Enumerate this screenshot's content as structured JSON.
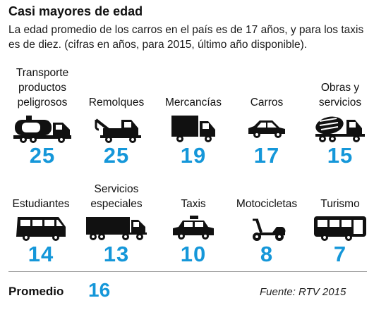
{
  "header": {
    "title": "Casi mayores de edad",
    "subtitle": "La edad promedio de los carros en el país es de 17 años, y para los taxis es de diez. (cifras en años, para 2015, último año disponible)."
  },
  "vehicles": [
    {
      "label": "Transporte productos peligrosos",
      "value": "25",
      "icon": "tanker-truck-icon"
    },
    {
      "label": "Remolques",
      "value": "25",
      "icon": "tow-truck-icon"
    },
    {
      "label": "Mercancías",
      "value": "19",
      "icon": "cargo-truck-icon"
    },
    {
      "label": "Carros",
      "value": "17",
      "icon": "car-icon"
    },
    {
      "label": "Obras y servicios",
      "value": "15",
      "icon": "cement-mixer-icon"
    },
    {
      "label": "Estudiantes",
      "value": "14",
      "icon": "van-icon"
    },
    {
      "label": "Servicios especiales",
      "value": "13",
      "icon": "trailer-truck-icon"
    },
    {
      "label": "Taxis",
      "value": "10",
      "icon": "taxi-icon"
    },
    {
      "label": "Motocicletas",
      "value": "8",
      "icon": "scooter-icon"
    },
    {
      "label": "Turismo",
      "value": "7",
      "icon": "bus-icon"
    }
  ],
  "footer": {
    "average_label": "Promedio",
    "average_value": "16",
    "source": "Fuente: RTV 2015"
  },
  "colors": {
    "accent": "#1597d9",
    "text": "#111111"
  }
}
